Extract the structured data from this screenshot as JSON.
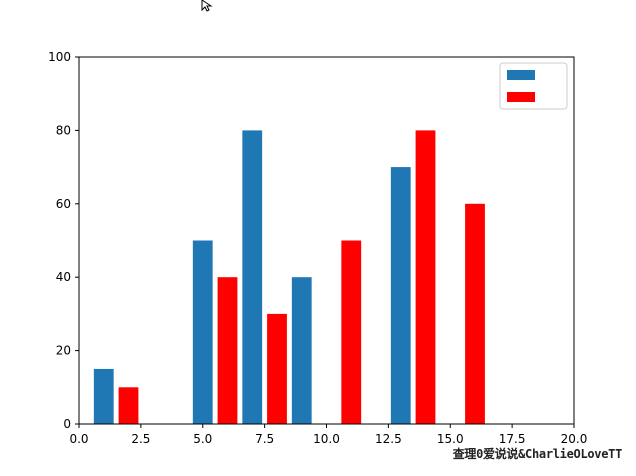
{
  "chart_data": {
    "type": "bar",
    "title": "",
    "xlabel": "",
    "ylabel": "",
    "xlim": [
      0,
      20
    ],
    "ylim": [
      0,
      100
    ],
    "xticks": [
      "0.0",
      "2.5",
      "5.0",
      "7.5",
      "10.0",
      "12.5",
      "15.0",
      "17.5",
      "20.0"
    ],
    "yticks": [
      "0",
      "20",
      "40",
      "60",
      "80",
      "100"
    ],
    "bar_width": 0.8,
    "grid": false,
    "legend_position": "top-right",
    "series": [
      {
        "name": "",
        "color": "#1f77b4",
        "x": [
          1,
          5,
          7,
          9,
          13
        ],
        "values": [
          15,
          50,
          80,
          40,
          70
        ]
      },
      {
        "name": "",
        "color": "#ff0000",
        "x": [
          2,
          6,
          8,
          11,
          14,
          16
        ],
        "values": [
          10,
          40,
          30,
          50,
          80,
          60
        ]
      }
    ]
  },
  "watermark": "查理0爱说说&CharlieOLoveTT"
}
